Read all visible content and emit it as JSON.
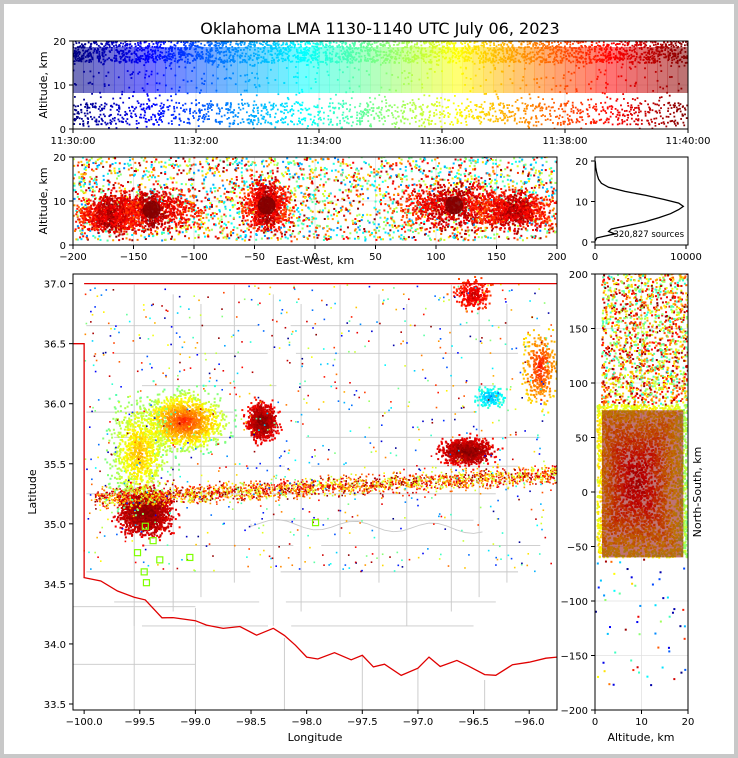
{
  "title": "Oklahoma LMA 1130-1140 UTC July 06, 2023",
  "colors": {
    "county_lines": "#c8c8c8",
    "state_border": "#e00000",
    "network_stations": "#7fff00",
    "jet_colormap": [
      "#00007f",
      "#0000ff",
      "#007fff",
      "#00ffff",
      "#7fff7f",
      "#ffff00",
      "#ff7f00",
      "#ff0000",
      "#7f0000"
    ]
  },
  "chart_data": [
    {
      "id": "time_height",
      "type": "scatter",
      "ylabel": "Altitude, km",
      "xlabel": "",
      "x_ticks": [
        "11:30:00",
        "11:32:00",
        "11:34:00",
        "11:36:00",
        "11:38:00",
        "11:40:00"
      ],
      "y_ticks": [
        "0",
        "10",
        "20"
      ],
      "ylim": [
        0,
        20
      ],
      "color_by": "time",
      "description_values": {
        "time_start": "11:30:00",
        "time_end": "11:40:00",
        "altitude_range_km": [
          0,
          20
        ]
      }
    },
    {
      "id": "ew_altitude",
      "type": "scatter",
      "xlabel": "East-West, km",
      "ylabel": "Altitude, km",
      "xlim": [
        -200,
        200
      ],
      "ylim": [
        0,
        20
      ],
      "x_ticks": [
        "−200",
        "−150",
        "−100",
        "−50",
        "0",
        "50",
        "100",
        "150",
        "200"
      ],
      "y_ticks": [
        "0",
        "10",
        "20"
      ],
      "clusters_km": [
        {
          "x": -135,
          "z": 8
        },
        {
          "x": -40,
          "z": 9
        },
        {
          "x": 115,
          "z": 9
        }
      ]
    },
    {
      "id": "altitude_histogram",
      "type": "line",
      "xlim": [
        0,
        10000
      ],
      "ylim": [
        0,
        20
      ],
      "x_ticks": [
        "0",
        "10000"
      ],
      "y_ticks": [
        "0",
        "10",
        "20"
      ],
      "annotation": "320,827 sources",
      "points": [
        [
          0,
          0.2
        ],
        [
          200,
          1.0
        ],
        [
          1200,
          1.5
        ],
        [
          2200,
          2.0
        ],
        [
          1500,
          2.6
        ],
        [
          1800,
          3.2
        ],
        [
          3500,
          4.0
        ],
        [
          5500,
          5.0
        ],
        [
          7000,
          6.0
        ],
        [
          8300,
          7.0
        ],
        [
          9200,
          8.0
        ],
        [
          9700,
          8.8
        ],
        [
          9200,
          9.6
        ],
        [
          7600,
          10.5
        ],
        [
          5600,
          11.5
        ],
        [
          3300,
          12.5
        ],
        [
          1500,
          13.5
        ],
        [
          700,
          14.5
        ],
        [
          400,
          15.5
        ],
        [
          250,
          16.5
        ],
        [
          150,
          17.5
        ],
        [
          80,
          18.5
        ],
        [
          40,
          19.5
        ],
        [
          10,
          20.0
        ]
      ]
    },
    {
      "id": "plan_view",
      "type": "scatter",
      "xlabel": "Longitude",
      "ylabel": "Latitude",
      "xlim": [
        -100.1,
        -95.75
      ],
      "ylim": [
        33.45,
        37.08
      ],
      "x_ticks": [
        "−100.0",
        "−99.5",
        "−99.0",
        "−98.5",
        "−98.0",
        "−97.5",
        "−97.0",
        "−96.5",
        "−96.0"
      ],
      "y_ticks": [
        "33.5",
        "34.0",
        "34.5",
        "35.0",
        "35.5",
        "36.0",
        "36.5",
        "37.0"
      ],
      "stations": [
        [
          -99.45,
          34.98
        ],
        [
          -99.38,
          34.86
        ],
        [
          -99.52,
          34.76
        ],
        [
          -99.46,
          34.6
        ],
        [
          -99.44,
          34.51
        ],
        [
          -99.32,
          34.7
        ],
        [
          -99.05,
          34.72
        ],
        [
          -97.92,
          35.01
        ]
      ]
    },
    {
      "id": "altitude_ns",
      "type": "scatter",
      "xlabel": "Altitude, km",
      "ylabel": "North-South, km",
      "xlim": [
        0,
        20
      ],
      "ylim": [
        -200,
        200
      ],
      "x_ticks": [
        "0",
        "10",
        "20"
      ],
      "y_ticks": [
        "−200",
        "−150",
        "−100",
        "−50",
        "0",
        "50",
        "100",
        "150",
        "200"
      ]
    }
  ]
}
